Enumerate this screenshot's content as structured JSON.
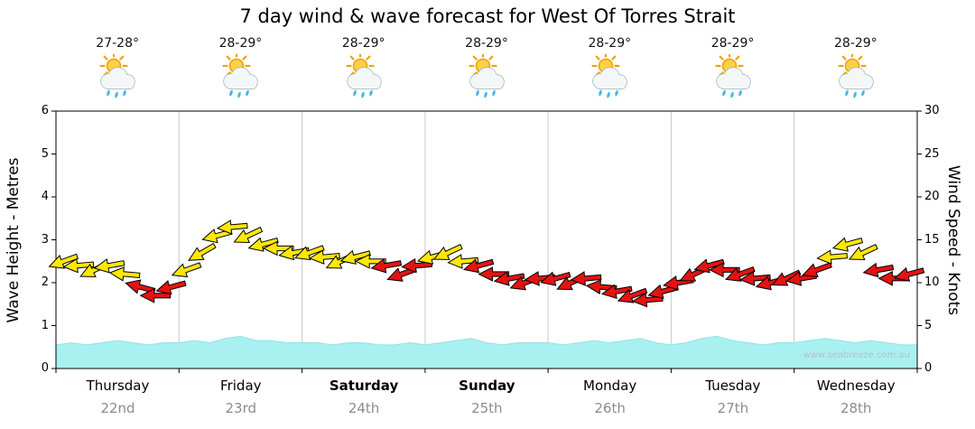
{
  "title": "7 day wind & wave forecast for West Of Torres Strait",
  "watermark": "www.seabreeze.com.au",
  "weather_icon": "partly-sunny-with-showers",
  "axes": {
    "left_label": "Wave Height - Metres",
    "right_label": "Wind Speed - Knots",
    "left_ticks": [
      0,
      1,
      2,
      3,
      4,
      5,
      6
    ],
    "right_ticks": [
      0,
      5,
      10,
      15,
      20,
      25,
      30
    ]
  },
  "days": [
    {
      "name": "Thursday",
      "date": "22nd",
      "temp": "27-28°",
      "weekend": false
    },
    {
      "name": "Friday",
      "date": "23rd",
      "temp": "28-29°",
      "weekend": false
    },
    {
      "name": "Saturday",
      "date": "24th",
      "temp": "28-29°",
      "weekend": true
    },
    {
      "name": "Sunday",
      "date": "25th",
      "temp": "28-29°",
      "weekend": true
    },
    {
      "name": "Monday",
      "date": "26th",
      "temp": "28-29°",
      "weekend": false
    },
    {
      "name": "Tuesday",
      "date": "27th",
      "temp": "28-29°",
      "weekend": false
    },
    {
      "name": "Wednesday",
      "date": "28th",
      "temp": "28-29°",
      "weekend": false
    }
  ],
  "colors": {
    "wave_fill": "#a9f1f1",
    "wave_edge": "#8fe2e6",
    "arrow_yellow": "#ffe800",
    "arrow_red": "#e51212",
    "grid": "#c9c9c9",
    "axis": "#000000",
    "date_gray": "#8c8c8c",
    "watermark": "#b3c0c9"
  },
  "chart_data": {
    "type": "area+wind_arrows",
    "title": "7 day wind & wave forecast for West Of Torres Strait",
    "x_unit": "3-hour intervals across 7 days (Thursday 22nd - Wednesday 28th)",
    "left_axis": {
      "label": "Wave Height - Metres",
      "range": [
        0,
        6
      ],
      "ticks": [
        0,
        1,
        2,
        3,
        4,
        5,
        6
      ]
    },
    "right_axis": {
      "label": "Wind Speed - Knots",
      "range": [
        0,
        30
      ],
      "ticks": [
        0,
        5,
        10,
        15,
        20,
        25,
        30
      ]
    },
    "grid": "vertical day separators only",
    "wave_height_m": [
      0.55,
      0.6,
      0.55,
      0.6,
      0.65,
      0.6,
      0.55,
      0.6,
      0.6,
      0.65,
      0.6,
      0.7,
      0.75,
      0.65,
      0.65,
      0.6,
      0.6,
      0.6,
      0.55,
      0.6,
      0.6,
      0.55,
      0.55,
      0.6,
      0.55,
      0.6,
      0.65,
      0.7,
      0.6,
      0.55,
      0.6,
      0.6,
      0.6,
      0.55,
      0.6,
      0.65,
      0.6,
      0.65,
      0.7,
      0.6,
      0.55,
      0.6,
      0.7,
      0.75,
      0.65,
      0.6,
      0.55,
      0.6,
      0.6,
      0.65,
      0.7,
      0.65,
      0.6,
      0.65,
      0.6,
      0.55,
      0.55
    ],
    "wind_points_format": [
      "speed_knots",
      "direction_deg_clockwise_from_east",
      "color(y=yellow,r=red)"
    ],
    "wind_points": [
      [
        12.5,
        160,
        "y"
      ],
      [
        12,
        175,
        "y"
      ],
      [
        11.5,
        155,
        "y"
      ],
      [
        12,
        170,
        "y"
      ],
      [
        11,
        185,
        "y"
      ],
      [
        9.5,
        195,
        "r"
      ],
      [
        8.5,
        180,
        "r"
      ],
      [
        9.5,
        165,
        "r"
      ],
      [
        11.5,
        160,
        "y"
      ],
      [
        13.5,
        150,
        "y"
      ],
      [
        15.5,
        165,
        "y"
      ],
      [
        16.5,
        175,
        "y"
      ],
      [
        15.5,
        155,
        "y"
      ],
      [
        14.5,
        165,
        "y"
      ],
      [
        14,
        180,
        "y"
      ],
      [
        13.5,
        170,
        "y"
      ],
      [
        13.5,
        160,
        "y"
      ],
      [
        13,
        175,
        "y"
      ],
      [
        12.5,
        155,
        "y"
      ],
      [
        13,
        165,
        "y"
      ],
      [
        12.5,
        180,
        "y"
      ],
      [
        12,
        170,
        "r"
      ],
      [
        11,
        160,
        "r"
      ],
      [
        12,
        175,
        "r"
      ],
      [
        13,
        165,
        "y"
      ],
      [
        13.5,
        155,
        "y"
      ],
      [
        12.5,
        175,
        "y"
      ],
      [
        12,
        165,
        "r"
      ],
      [
        11,
        180,
        "r"
      ],
      [
        10.5,
        170,
        "r"
      ],
      [
        10,
        160,
        "r"
      ],
      [
        10.5,
        175,
        "r"
      ],
      [
        10.5,
        165,
        "r"
      ],
      [
        10,
        155,
        "r"
      ],
      [
        10.5,
        175,
        "r"
      ],
      [
        9.5,
        185,
        "r"
      ],
      [
        9,
        170,
        "r"
      ],
      [
        8.5,
        160,
        "r"
      ],
      [
        8,
        175,
        "r"
      ],
      [
        9,
        165,
        "r"
      ],
      [
        10,
        170,
        "r"
      ],
      [
        11,
        155,
        "r"
      ],
      [
        12,
        165,
        "r"
      ],
      [
        11.5,
        180,
        "r"
      ],
      [
        11,
        160,
        "r"
      ],
      [
        10.5,
        175,
        "r"
      ],
      [
        10,
        165,
        "r"
      ],
      [
        10.5,
        155,
        "r"
      ],
      [
        10.5,
        170,
        "r"
      ],
      [
        11.5,
        160,
        "r"
      ],
      [
        13,
        175,
        "y"
      ],
      [
        14.5,
        165,
        "y"
      ],
      [
        13.5,
        155,
        "y"
      ],
      [
        11.5,
        170,
        "r"
      ],
      [
        10.5,
        180,
        "r"
      ],
      [
        11,
        165,
        "r"
      ]
    ]
  }
}
